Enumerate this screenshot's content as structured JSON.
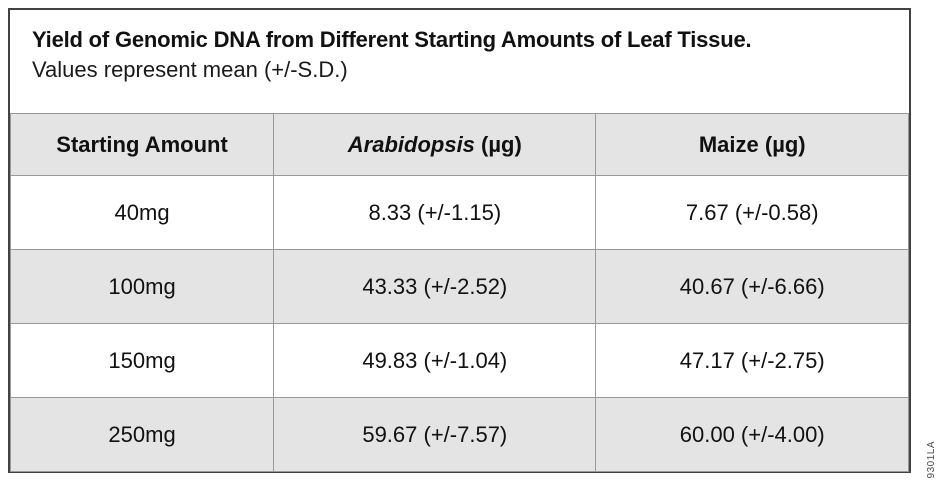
{
  "figure": {
    "title": "Yield of Genomic DNA from Different Starting Amounts of Leaf Tissue.",
    "subtitle": "Values represent mean (+/-S.D.)",
    "figure_id": "9301LA"
  },
  "table": {
    "header": {
      "col1": "Starting Amount",
      "col2_genus": "Arabidopsis",
      "col2_unit": " (µg)",
      "col3": "Maize (µg)"
    },
    "rows": [
      {
        "starting_amount": "40mg",
        "arabidopsis": "8.33 (+/-1.15)",
        "maize": "7.67 (+/-0.58)"
      },
      {
        "starting_amount": "100mg",
        "arabidopsis": "43.33 (+/-2.52)",
        "maize": "40.67 (+/-6.66)"
      },
      {
        "starting_amount": "150mg",
        "arabidopsis": "49.83 (+/-1.04)",
        "maize": "47.17 (+/-2.75)"
      },
      {
        "starting_amount": "250mg",
        "arabidopsis": "59.67 (+/-7.57)",
        "maize": "60.00 (+/-4.00)"
      }
    ]
  },
  "colors": {
    "row_shade": "#e4e4e4",
    "cell_border": "#999999",
    "outer_border": "#424242",
    "text": "#111111"
  },
  "chart_data": {
    "type": "table",
    "title": "Yield of Genomic DNA from Different Starting Amounts of Leaf Tissue.",
    "subtitle": "Values represent mean (+/-S.D.)",
    "columns": [
      "Starting Amount",
      "Arabidopsis (µg)",
      "Maize (µg)"
    ],
    "categories": [
      "40mg",
      "100mg",
      "150mg",
      "250mg"
    ],
    "series": [
      {
        "name": "Arabidopsis (µg)",
        "values": [
          8.33,
          43.33,
          49.83,
          59.67
        ],
        "sd": [
          1.15,
          2.52,
          1.04,
          7.57
        ]
      },
      {
        "name": "Maize (µg)",
        "values": [
          7.67,
          40.67,
          47.17,
          60.0
        ],
        "sd": [
          0.58,
          6.66,
          2.75,
          4.0
        ]
      }
    ]
  }
}
